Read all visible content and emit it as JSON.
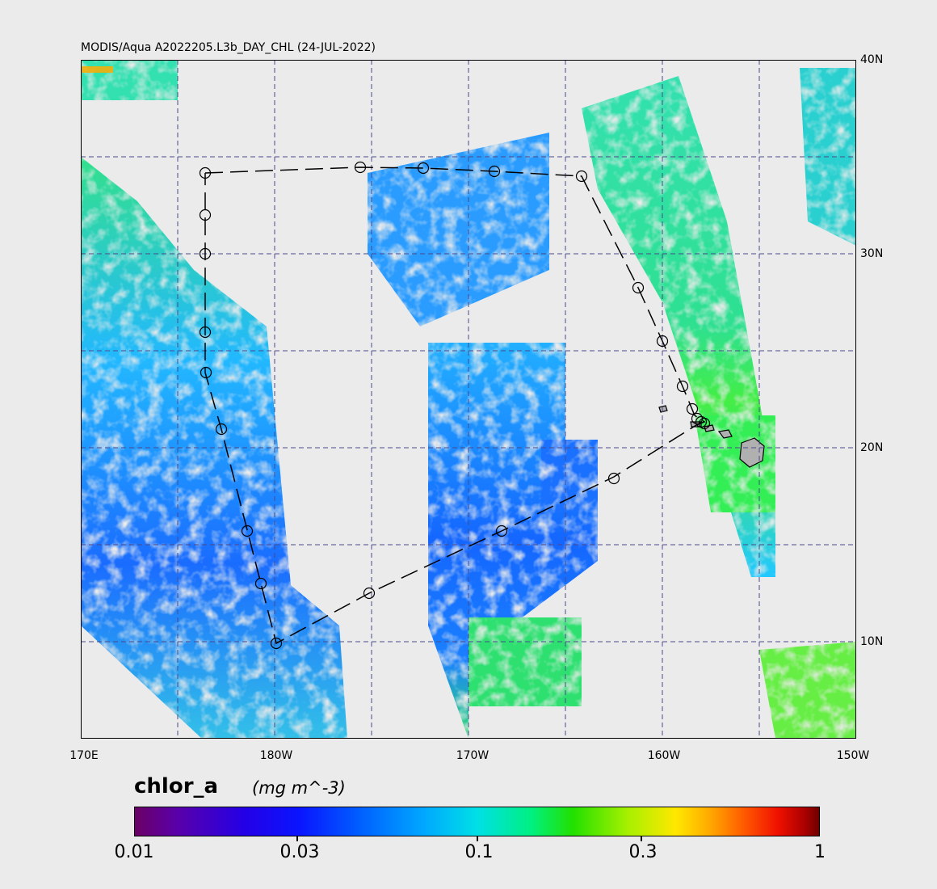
{
  "title": "MODIS/Aqua A2022205.L3b_DAY_CHL (24-JUL-2022)",
  "variable": {
    "name": "chlor_a",
    "units": "(mg m^-3)"
  },
  "lat_labels": [
    "40N",
    "30N",
    "20N",
    "10N"
  ],
  "lon_labels": [
    "170E",
    "180W",
    "170W",
    "160W",
    "150W"
  ],
  "colorbar": {
    "labels": [
      "0.01",
      "0.03",
      "0.1",
      "0.3",
      "1"
    ]
  },
  "colors": {
    "background": "#ebebeb",
    "gridline": "#4a4a8a",
    "land": "#b0b0b0"
  },
  "icons": {
    "station_marker": "circle-icon",
    "track": "dashed-line"
  }
}
